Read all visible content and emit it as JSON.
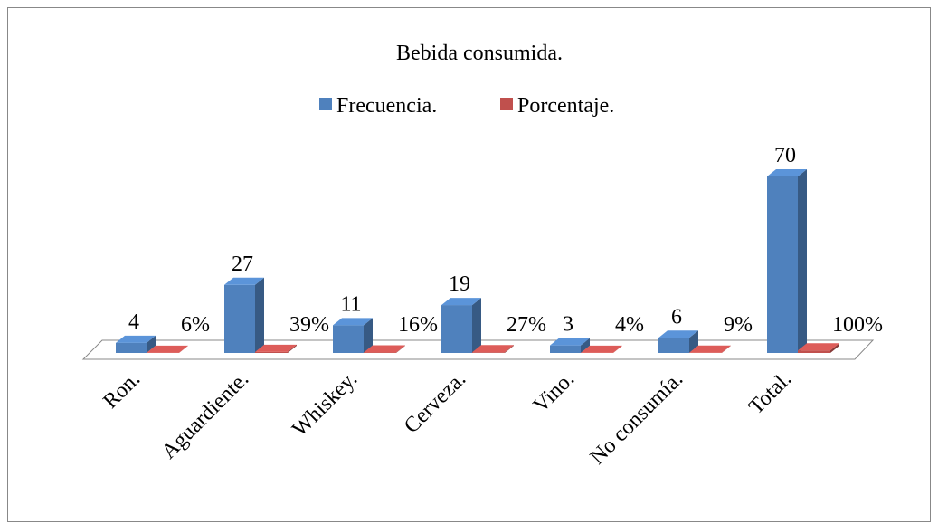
{
  "chart_data": {
    "type": "bar3d",
    "title": "Bebida consumida.",
    "categories": [
      "Ron.",
      "Aguardiente.",
      "Whiskey.",
      "Cerveza.",
      "Vino.",
      "No consumía.",
      "Total."
    ],
    "series": [
      {
        "name": "Frecuencia.",
        "color": "#4f81bd",
        "values": [
          4,
          27,
          11,
          19,
          3,
          6,
          70
        ]
      },
      {
        "name": "Porcentaje.",
        "color": "#c0504d",
        "values": [
          0.06,
          0.39,
          0.16,
          0.27,
          0.04,
          0.09,
          1.0
        ],
        "value_labels": [
          "6%",
          "39%",
          "16%",
          "27%",
          "4%",
          "9%",
          "100%"
        ]
      }
    ],
    "legend": "top"
  }
}
